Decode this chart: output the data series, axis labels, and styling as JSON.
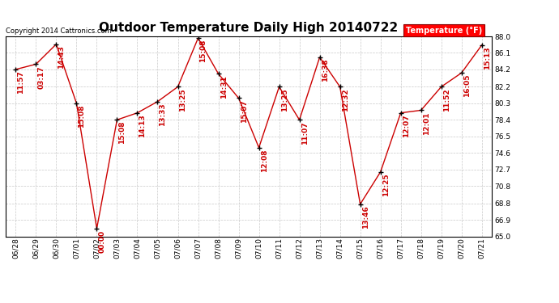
{
  "title": "Outdoor Temperature Daily High 20140722",
  "copyright": "Copyright 2014 Cattronics.com",
  "legend_label": "Temperature (°F)",
  "x_labels": [
    "06/28",
    "06/29",
    "06/30",
    "07/01",
    "07/02",
    "07/03",
    "07/04",
    "07/05",
    "07/06",
    "07/07",
    "07/08",
    "07/09",
    "07/10",
    "07/11",
    "07/12",
    "07/13",
    "07/14",
    "07/15",
    "07/16",
    "07/17",
    "07/18",
    "07/19",
    "07/20",
    "07/21"
  ],
  "y_values": [
    84.2,
    84.8,
    87.1,
    80.3,
    65.9,
    78.4,
    79.2,
    80.5,
    82.2,
    87.8,
    83.7,
    80.9,
    75.2,
    82.2,
    78.4,
    85.6,
    82.2,
    68.7,
    72.4,
    79.2,
    79.5,
    82.2,
    83.8,
    87.0
  ],
  "time_labels": [
    "11:57",
    "03:17",
    "14:43",
    "15:08",
    "00:00",
    "15:08",
    "14:13",
    "13:33",
    "13:25",
    "15:08",
    "14:31",
    "15:07",
    "12:08",
    "13:25",
    "11:07",
    "16:38",
    "12:32",
    "13:46",
    "12:25",
    "12:07",
    "12:01",
    "11:52",
    "16:05",
    "15:13"
  ],
  "line_color": "#cc0000",
  "marker_color": "black",
  "bg_color": "#ffffff",
  "grid_color": "#bbbbbb",
  "ylim": [
    65.0,
    88.0
  ],
  "yticks": [
    65.0,
    66.9,
    68.8,
    70.8,
    72.7,
    74.6,
    76.5,
    78.4,
    80.3,
    82.2,
    84.2,
    86.1,
    88.0
  ],
  "title_fontsize": 11,
  "label_fontsize": 6.5,
  "time_fontsize": 6.5,
  "fig_width": 6.9,
  "fig_height": 3.75,
  "dpi": 100
}
